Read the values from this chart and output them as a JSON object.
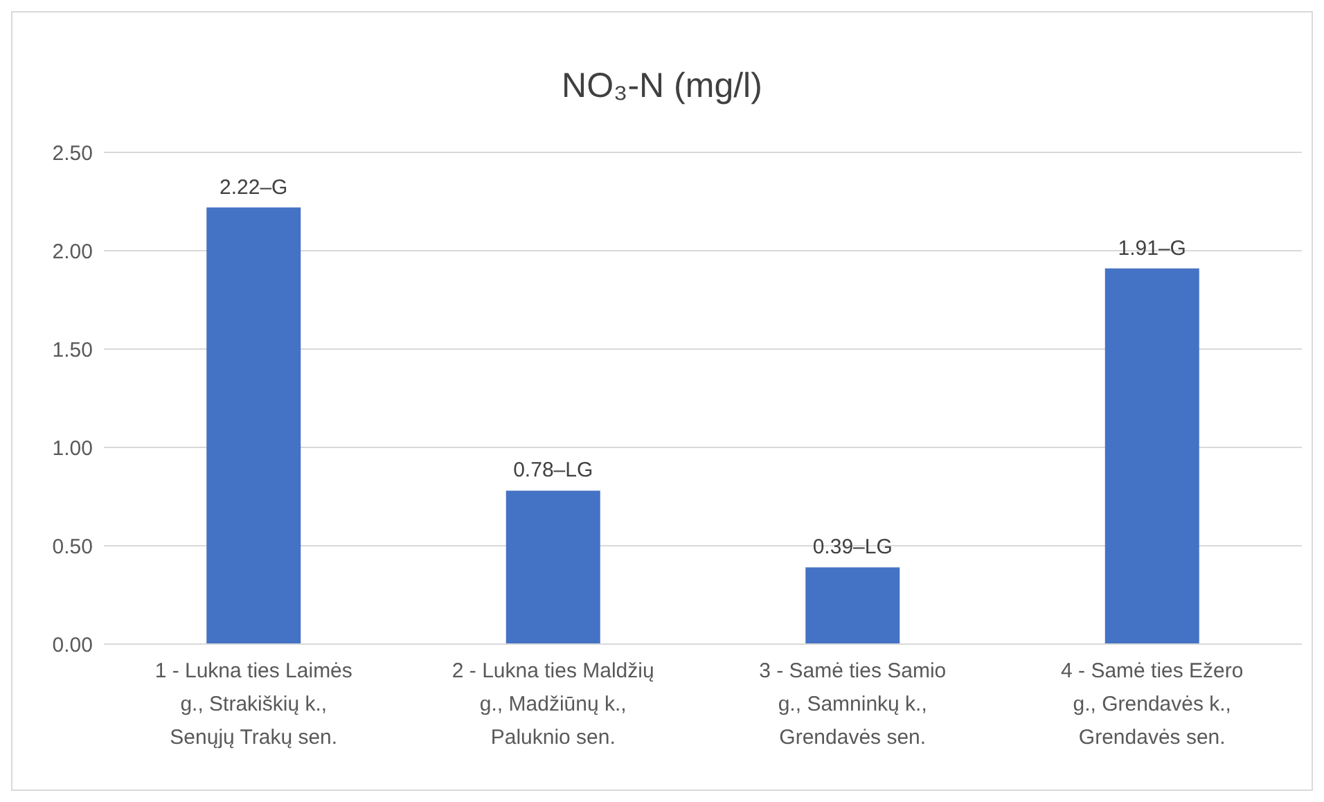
{
  "chart_data": {
    "type": "bar",
    "title": "NO₃-N (mg/l)",
    "categories": [
      "1 - Lukna ties Laimės g., Strakiškių k., Senųjų Trakų sen.",
      "2 - Lukna ties Maldžių g., Madžiūnų k., Paluknio sen.",
      "3 - Samė ties Samio g., Samninkų k., Grendavės sen.",
      "4 - Samė ties Ežero g., Grendavės k., Grendavės sen."
    ],
    "values": [
      2.22,
      0.78,
      0.39,
      1.91
    ],
    "value_labels": [
      "2.22–G",
      "0.78–LG",
      "0.39–LG",
      "1.91–G"
    ],
    "color": "#4472c4",
    "ylim": [
      0,
      2.5
    ],
    "yticks": [
      {
        "value": 0,
        "label": "0.00"
      },
      {
        "value": 0.5,
        "label": "0.50"
      },
      {
        "value": 1,
        "label": "1.00"
      },
      {
        "value": 1.5,
        "label": "1.50"
      },
      {
        "value": 2,
        "label": "2.00"
      },
      {
        "value": 2.5,
        "label": "2.50"
      }
    ],
    "grid": "y"
  }
}
